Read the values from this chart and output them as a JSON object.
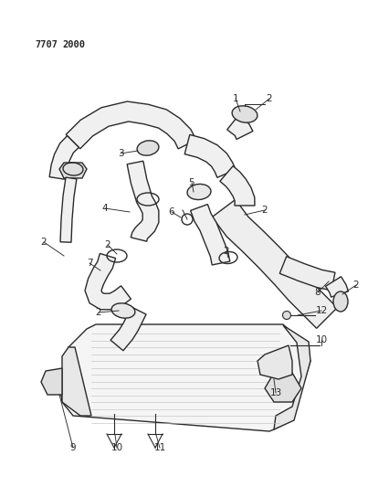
{
  "title_part1": "7707",
  "title_part2": "2000",
  "bg_color": "#ffffff",
  "line_color": "#2a2a2a",
  "fig_width": 4.27,
  "fig_height": 5.33,
  "dpi": 100
}
